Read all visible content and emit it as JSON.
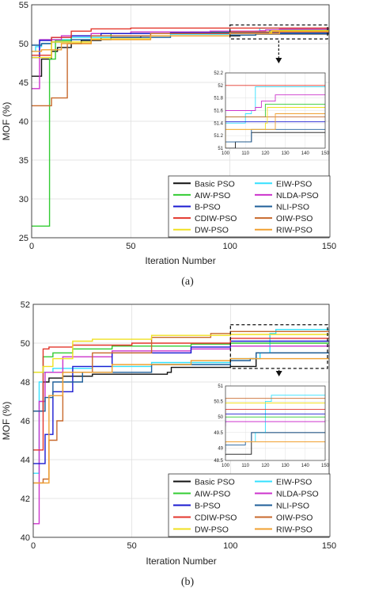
{
  "captions": [
    "(a)",
    "(b)"
  ],
  "colors": {
    "Basic PSO": "#111111",
    "EIW-PSO": "#33e0ff",
    "AIW-PSO": "#33cc33",
    "NLDA-PSO": "#cc33cc",
    "B-PSO": "#1a1ad1",
    "NLI-PSO": "#1f5f99",
    "CDIW-PSO": "#e3362c",
    "OIW-PSO": "#c8692c",
    "DW-PSO": "#f0e020",
    "RIW-PSO": "#f0a030"
  },
  "chart_data": [
    {
      "type": "line",
      "xlabel": "Iteration Number",
      "ylabel": "MOF (%)",
      "xlim": [
        0,
        150
      ],
      "ylim": [
        25,
        55
      ],
      "xticks": [
        "0",
        "50",
        "100",
        "150"
      ],
      "yticks": [
        "25",
        "30",
        "35",
        "40",
        "45",
        "50",
        "55"
      ],
      "grid": true,
      "legend_placement": "bottom-right",
      "legend": [
        "Basic PSO",
        "EIW-PSO",
        "AIW-PSO",
        "NLDA-PSO",
        "B-PSO",
        "NLI-PSO",
        "CDIW-PSO",
        "OIW-PSO",
        "DW-PSO",
        "RIW-PSO"
      ],
      "series": [
        {
          "name": "Basic PSO",
          "x": [
            0,
            1,
            5,
            6,
            10,
            13,
            20,
            25,
            35,
            55,
            105,
            113,
            150
          ],
          "y": [
            45.8,
            45.8,
            48.0,
            48.0,
            49.0,
            49.5,
            50.0,
            50.4,
            50.8,
            51.0,
            51.1,
            51.25,
            51.25
          ]
        },
        {
          "name": "EIW-PSO",
          "x": [
            0,
            2,
            5,
            10,
            20,
            40,
            70,
            100,
            110,
            113,
            115,
            150
          ],
          "y": [
            49.0,
            49.6,
            50.0,
            50.5,
            50.8,
            51.0,
            51.2,
            51.4,
            51.55,
            51.6,
            51.98,
            51.98
          ]
        },
        {
          "name": "AIW-PSO",
          "x": [
            0,
            2,
            8,
            9,
            12,
            20,
            40,
            80,
            120,
            150
          ],
          "y": [
            26.5,
            26.5,
            26.5,
            48.0,
            50.4,
            51.0,
            51.3,
            51.5,
            51.7,
            51.7
          ]
        },
        {
          "name": "NLDA-PSO",
          "x": [
            0,
            2,
            4,
            15,
            30,
            50,
            90,
            100,
            115,
            118,
            125,
            150
          ],
          "y": [
            44.2,
            44.2,
            50.5,
            51.0,
            51.3,
            51.5,
            51.6,
            51.6,
            51.65,
            51.75,
            51.85,
            51.85
          ]
        },
        {
          "name": "B-PSO",
          "x": [
            0,
            3,
            4,
            10,
            20,
            35,
            70,
            100,
            150
          ],
          "y": [
            48.2,
            48.2,
            50.4,
            50.8,
            51.0,
            51.3,
            51.4,
            51.42,
            51.42
          ]
        },
        {
          "name": "NLI-PSO",
          "x": [
            0,
            5,
            10,
            20,
            40,
            70,
            100,
            112,
            113,
            150
          ],
          "y": [
            49.8,
            50.0,
            50.2,
            50.5,
            50.8,
            51.0,
            51.1,
            51.1,
            51.3,
            51.3
          ]
        },
        {
          "name": "CDIW-PSO",
          "x": [
            0,
            4,
            10,
            20,
            30,
            50,
            80,
            100,
            150
          ],
          "y": [
            48.5,
            48.5,
            50.8,
            51.6,
            51.9,
            52.0,
            52.0,
            52.0,
            52.0
          ]
        },
        {
          "name": "OIW-PSO",
          "x": [
            0,
            8,
            10,
            15,
            18,
            30,
            60,
            100,
            150
          ],
          "y": [
            42.0,
            42.0,
            43.0,
            43.0,
            50.0,
            51.0,
            51.3,
            51.5,
            51.5
          ]
        },
        {
          "name": "DW-PSO",
          "x": [
            0,
            3,
            10,
            30,
            60,
            100,
            120,
            121,
            150
          ],
          "y": [
            48.2,
            48.2,
            50.2,
            50.6,
            51.0,
            51.3,
            51.4,
            51.65,
            51.65
          ]
        },
        {
          "name": "RIW-PSO",
          "x": [
            0,
            5,
            15,
            30,
            60,
            100,
            125,
            150
          ],
          "y": [
            49.0,
            49.2,
            50.0,
            50.5,
            51.0,
            51.3,
            51.55,
            51.55
          ]
        }
      ],
      "inset": {
        "xlim": [
          100,
          150
        ],
        "ylim": [
          51,
          52.2
        ],
        "xticks": [
          "100",
          "110",
          "120",
          "130",
          "140",
          "150"
        ],
        "yticks": [
          "51",
          "51.2",
          "51.4",
          "51.6",
          "51.8",
          "52",
          "52.2"
        ]
      }
    },
    {
      "type": "line",
      "xlabel": "Iteration Number",
      "ylabel": "MOF (%)",
      "xlim": [
        0,
        150
      ],
      "ylim": [
        40,
        52
      ],
      "xticks": [
        "0",
        "50",
        "100",
        "150"
      ],
      "yticks": [
        "40",
        "42",
        "44",
        "46",
        "48",
        "50",
        "52"
      ],
      "grid": true,
      "legend_placement": "bottom-right",
      "legend": [
        "Basic PSO",
        "EIW-PSO",
        "AIW-PSO",
        "NLDA-PSO",
        "B-PSO",
        "NLI-PSO",
        "CDIW-PSO",
        "OIW-PSO",
        "DW-PSO",
        "RIW-PSO"
      ],
      "series": [
        {
          "name": "Basic PSO",
          "x": [
            0,
            2,
            5,
            8,
            15,
            30,
            68,
            70,
            100,
            112,
            113,
            150
          ],
          "y": [
            46.5,
            46.5,
            48.0,
            48.2,
            48.3,
            48.4,
            48.5,
            48.75,
            48.8,
            48.8,
            49.5,
            49.5
          ]
        },
        {
          "name": "EIW-PSO",
          "x": [
            0,
            2,
            3,
            5,
            10,
            30,
            60,
            100,
            115,
            120,
            123,
            150
          ],
          "y": [
            43.3,
            43.3,
            48.0,
            48.5,
            48.7,
            48.8,
            49.0,
            49.2,
            49.5,
            50.5,
            50.7,
            50.7
          ]
        },
        {
          "name": "AIW-PSO",
          "x": [
            0,
            2,
            5,
            10,
            20,
            40,
            80,
            100,
            150
          ],
          "y": [
            48.5,
            48.5,
            49.3,
            49.5,
            49.7,
            49.85,
            49.95,
            50.0,
            50.0
          ]
        },
        {
          "name": "NLDA-PSO",
          "x": [
            0,
            2,
            3,
            6,
            15,
            40,
            80,
            100,
            150
          ],
          "y": [
            40.7,
            40.7,
            47.0,
            48.5,
            49.3,
            49.6,
            49.7,
            49.85,
            49.9
          ]
        },
        {
          "name": "B-PSO",
          "x": [
            0,
            3,
            6,
            10,
            20,
            40,
            80,
            100,
            150
          ],
          "y": [
            43.8,
            43.8,
            45.3,
            47.5,
            48.8,
            49.5,
            49.8,
            50.1,
            50.1
          ]
        },
        {
          "name": "NLI-PSO",
          "x": [
            0,
            3,
            6,
            10,
            25,
            60,
            100,
            110,
            113,
            150
          ],
          "y": [
            46.5,
            46.5,
            47.2,
            48.0,
            48.5,
            48.9,
            49.1,
            49.2,
            49.5,
            49.5
          ]
        },
        {
          "name": "CDIW-PSO",
          "x": [
            0,
            2,
            5,
            8,
            20,
            50,
            100,
            150
          ],
          "y": [
            44.5,
            44.5,
            49.7,
            49.8,
            49.9,
            50.0,
            50.25,
            50.25
          ]
        },
        {
          "name": "OIW-PSO",
          "x": [
            0,
            3,
            5,
            8,
            12,
            15,
            30,
            60,
            90,
            100,
            150
          ],
          "y": [
            42.8,
            42.8,
            43.0,
            45.0,
            46.0,
            48.5,
            49.5,
            50.3,
            50.5,
            50.6,
            50.6
          ]
        },
        {
          "name": "DW-PSO",
          "x": [
            0,
            2,
            5,
            10,
            20,
            30,
            60,
            100,
            150
          ],
          "y": [
            48.5,
            48.5,
            48.8,
            49.2,
            50.1,
            50.2,
            50.4,
            50.45,
            50.45
          ]
        },
        {
          "name": "RIW-PSO",
          "x": [
            0,
            4,
            8,
            15,
            40,
            80,
            100,
            150
          ],
          "y": [
            42.8,
            42.8,
            47.3,
            48.5,
            48.9,
            49.1,
            49.2,
            49.2
          ]
        }
      ],
      "inset": {
        "xlim": [
          100,
          150
        ],
        "ylim": [
          48.6,
          51
        ],
        "xticks": [
          "100",
          "110",
          "120",
          "130",
          "140",
          "150"
        ],
        "yticks": [
          "48.5",
          "49",
          "49.5",
          "50",
          "50.5",
          "51"
        ]
      }
    }
  ]
}
